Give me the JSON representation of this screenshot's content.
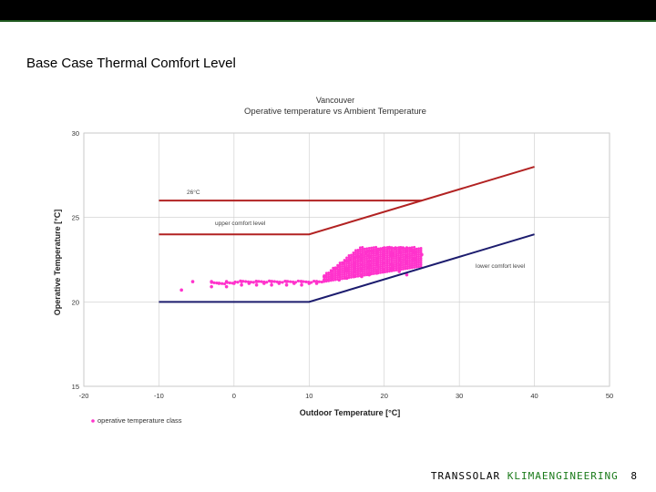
{
  "slide": {
    "title": "Base Case Thermal Comfort Level",
    "footer_brand_1": "TRANSSOLAR",
    "footer_brand_2": "KLIMAENGINEERING",
    "page_number": "8"
  },
  "colors": {
    "upper_lines": "#b22222",
    "lower_line": "#1c1c6e",
    "scatter": "#ff33cc",
    "grid": "#cccccc",
    "top_bar": "#000000",
    "brand_green": "#1a7a1a"
  },
  "chart_data": {
    "type": "line",
    "title_line1": "Vancouver",
    "title_line2": "Operative temperature vs Ambient Temperature",
    "xlabel": "Outdoor Temperature [°C]",
    "ylabel": "Operative Temperature [°C]",
    "xlim": [
      -20,
      50
    ],
    "ylim": [
      15,
      30
    ],
    "xticks": [
      -20,
      -10,
      0,
      10,
      20,
      30,
      40,
      50
    ],
    "yticks": [
      15,
      20,
      25,
      30
    ],
    "grid": true,
    "series": [
      {
        "name": "",
        "color": "#b22222",
        "x": [
          -10,
          25
        ],
        "y": [
          26,
          26
        ]
      },
      {
        "name": "",
        "color": "#b22222",
        "x": [
          -10,
          10,
          40
        ],
        "y": [
          24,
          24,
          28
        ]
      },
      {
        "name": "",
        "color": "#1c1c6e",
        "x": [
          -10,
          10,
          40
        ],
        "y": [
          20,
          20,
          24
        ]
      }
    ],
    "annotations": [
      {
        "text": "26°C",
        "x": -6,
        "y": 26.3
      },
      {
        "text": "upper comfort level",
        "x": -2.5,
        "y": 24.5
      },
      {
        "text": "lower comfort level",
        "x": 32,
        "y": 22.0
      }
    ],
    "scatter": {
      "name": "operative temperature class",
      "color": "#ff33cc",
      "x": [
        -7,
        -5.5,
        -3,
        -2,
        -1,
        0,
        1,
        2,
        3,
        4,
        5,
        6,
        7,
        8,
        9,
        10,
        11,
        12,
        13,
        14,
        15,
        16,
        17,
        18,
        19,
        20,
        21,
        22,
        23,
        24,
        25,
        -3,
        -1,
        1,
        3,
        5,
        7,
        9,
        11,
        12,
        13,
        13.5,
        14,
        14.5,
        15,
        15.5,
        16,
        16.5,
        17,
        17.5,
        18,
        18.5,
        19,
        19.5,
        20,
        20.5,
        21,
        21.5,
        22,
        22.5,
        23,
        23.5,
        24,
        14,
        15,
        16,
        17,
        18,
        19,
        20,
        21,
        22,
        23,
        24,
        15,
        16,
        17,
        18,
        19,
        20,
        21,
        22,
        23,
        16,
        17,
        18,
        19,
        20,
        21,
        22,
        17,
        18,
        19,
        20,
        21,
        22,
        23,
        12.5,
        13,
        14,
        15,
        16,
        17,
        18,
        19,
        20,
        21,
        22,
        23,
        24
      ],
      "y": [
        20.7,
        21.2,
        21.2,
        21.1,
        21.2,
        21.1,
        21.2,
        21.1,
        21.2,
        21.1,
        21.2,
        21.1,
        21.2,
        21.1,
        21.2,
        21.1,
        21.2,
        21.3,
        21.4,
        21.3,
        21.4,
        21.5,
        21.6,
        21.7,
        21.8,
        21.9,
        22.0,
        22.2,
        22.4,
        22.6,
        22.8,
        20.9,
        20.9,
        21.0,
        21.0,
        21.0,
        21.0,
        21.0,
        21.1,
        21.5,
        21.8,
        22.0,
        22.1,
        22.3,
        22.4,
        22.5,
        22.6,
        22.7,
        22.8,
        22.9,
        23.0,
        23.0,
        23.1,
        23.1,
        23.2,
        23.2,
        23.2,
        23.2,
        23.2,
        23.2,
        23.2,
        23.1,
        23.0,
        21.6,
        21.8,
        22.0,
        22.2,
        22.4,
        22.6,
        22.8,
        22.9,
        23.0,
        23.0,
        22.9,
        22.0,
        22.3,
        22.5,
        22.7,
        22.9,
        23.0,
        22.7,
        22.5,
        22.3,
        21.8,
        21.9,
        22.0,
        22.2,
        22.3,
        22.2,
        22.0,
        21.5,
        21.6,
        21.7,
        21.8,
        21.9,
        21.8,
        21.6,
        21.3,
        21.6,
        21.8,
        21.9,
        22.1,
        22.6,
        22.2,
        22.4,
        22.6,
        22.8,
        22.6,
        22.7,
        22.5
      ]
    },
    "legend": {
      "placement": "bottom-left",
      "label": "operative temperature class"
    }
  }
}
